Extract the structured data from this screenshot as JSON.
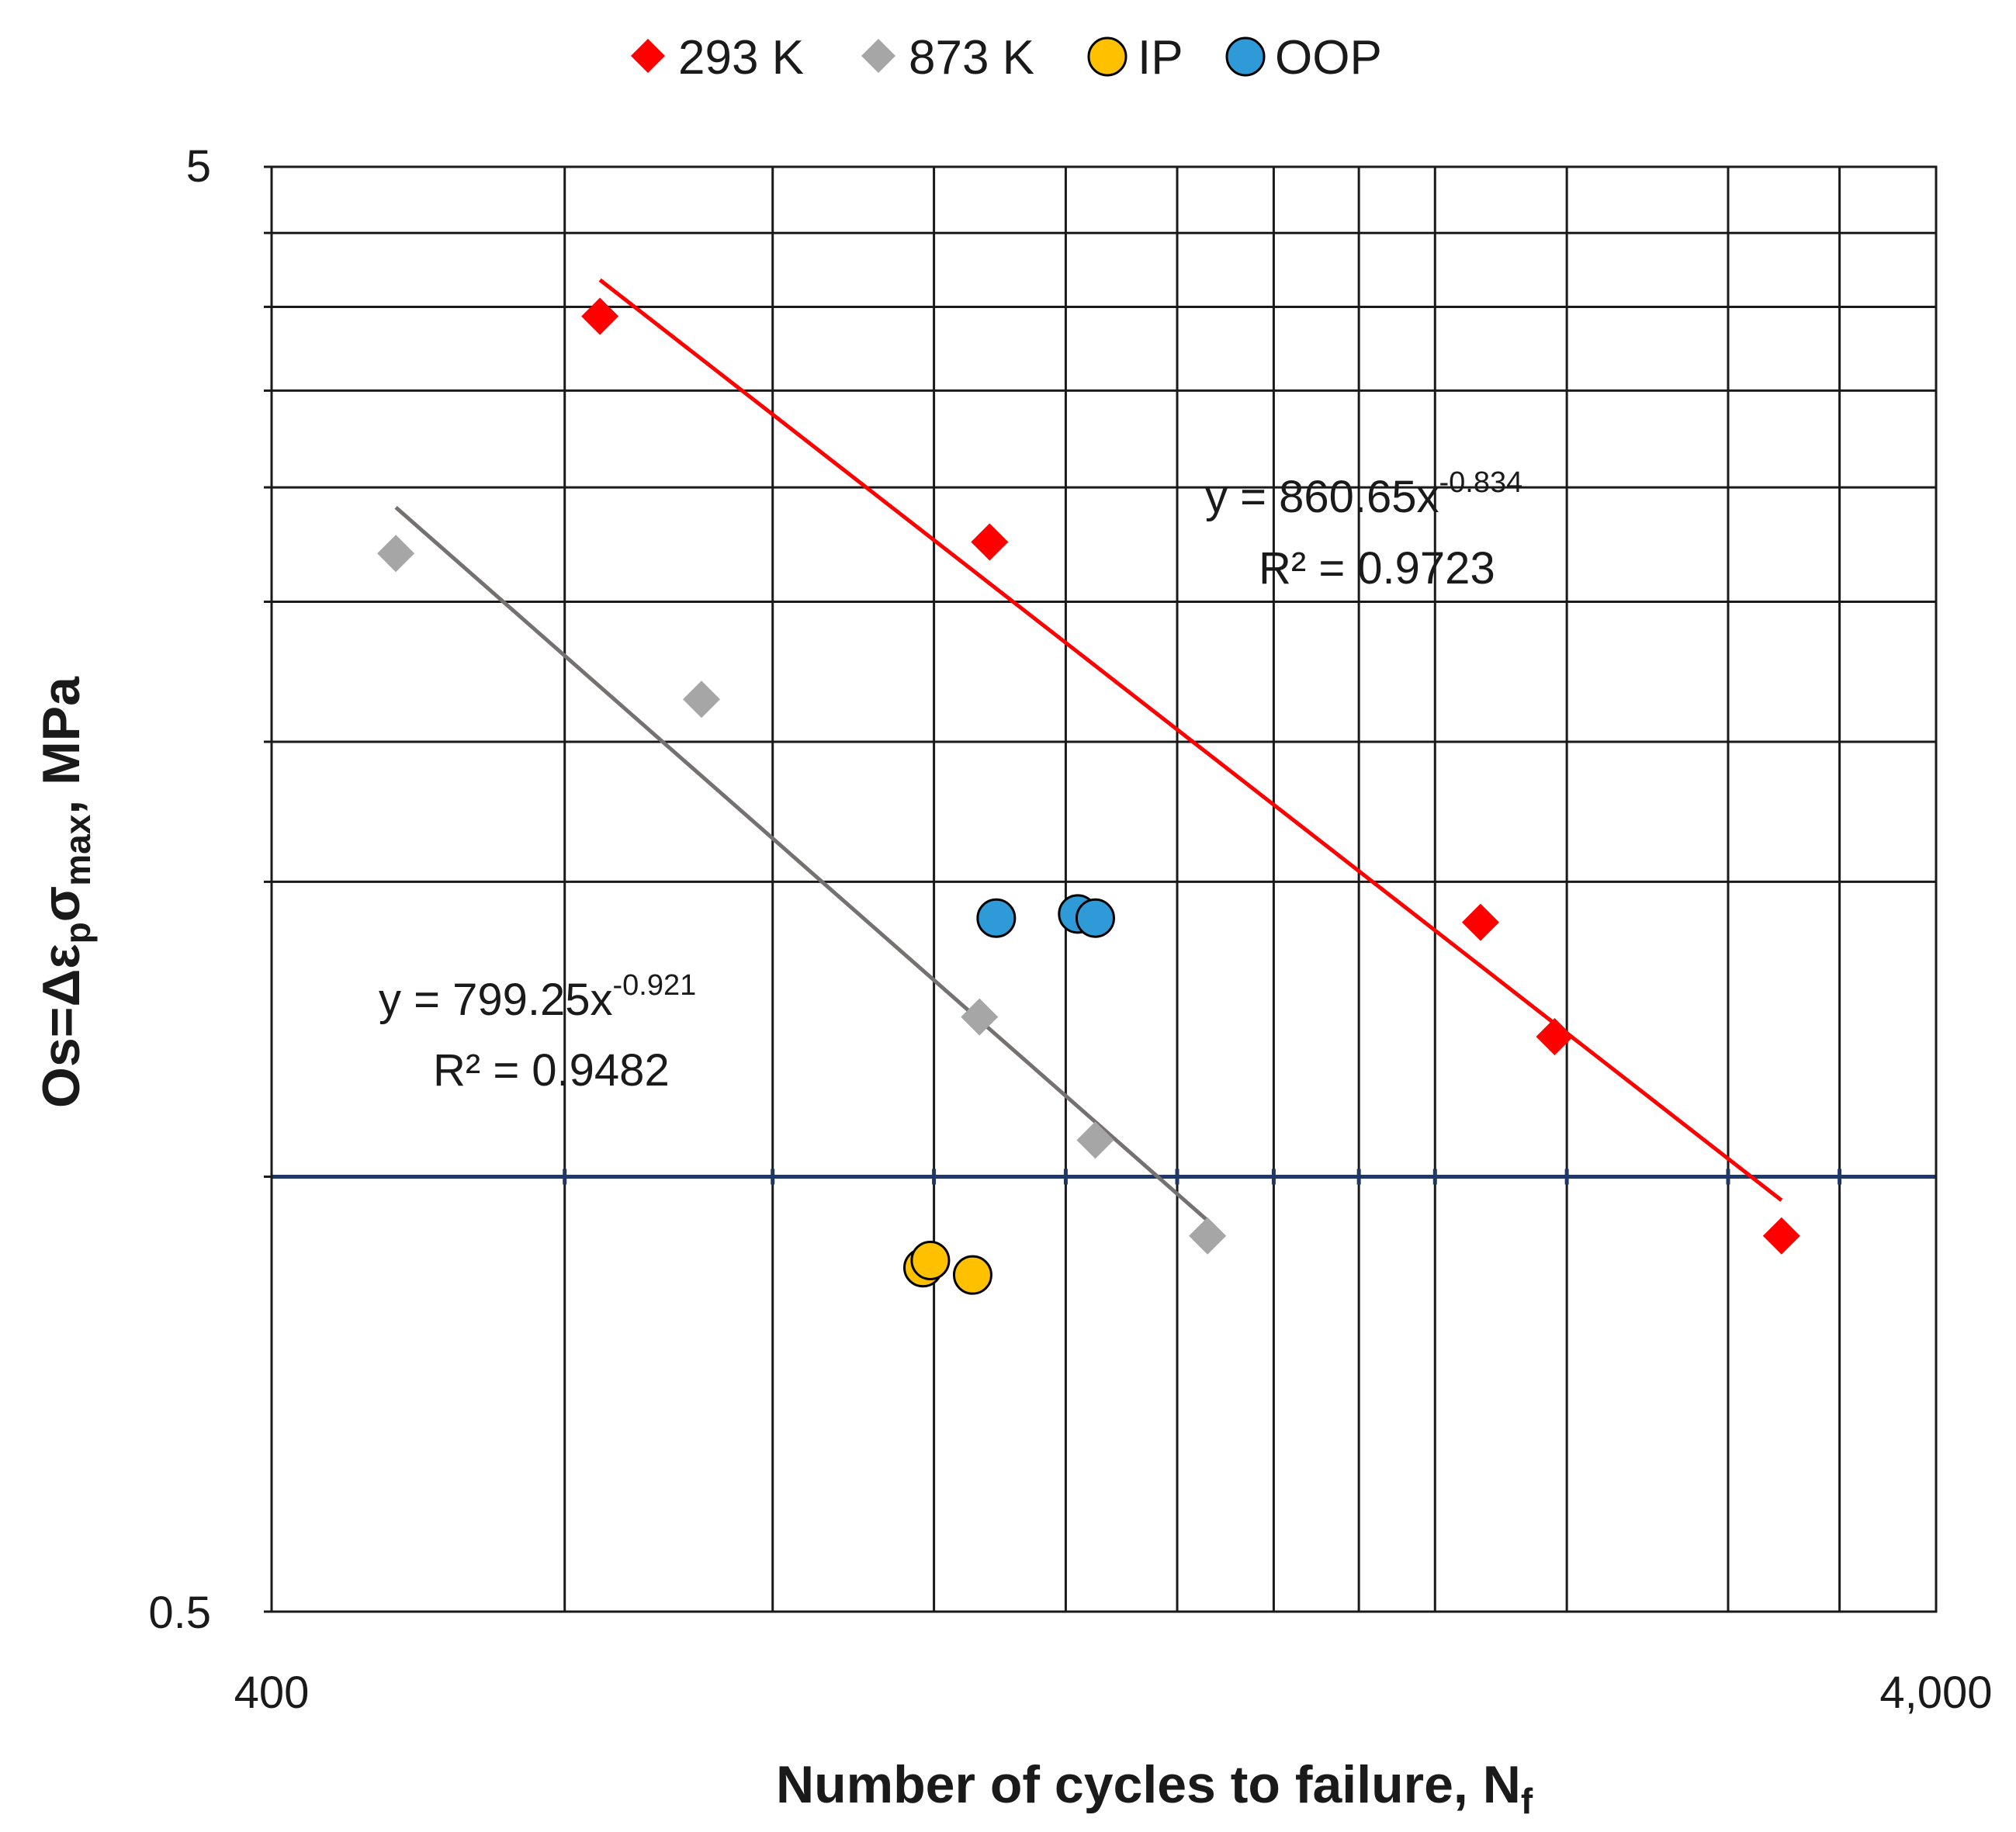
{
  "chart_data": {
    "type": "scatter",
    "xscale": "log",
    "yscale": "log",
    "xlim": [
      400,
      4000
    ],
    "ylim": [
      0.5,
      5
    ],
    "x_tick_labels": [
      "400",
      "4,000"
    ],
    "y_tick_labels": [
      "0.5",
      "5"
    ],
    "x_gridlines": [
      400,
      600,
      800,
      1000,
      1200,
      1400,
      1600,
      1800,
      2000,
      2400,
      3000,
      3500
    ],
    "y_gridlines": [
      0.5,
      1.0,
      1.6,
      2.0,
      2.5,
      3.0,
      3.5,
      4.0,
      4.5,
      5.0
    ],
    "reference_line": {
      "y": 1.0,
      "color": "#1f3864"
    },
    "xlabel": {
      "main": "Number of cycles to failure, N",
      "sub": "f"
    },
    "ylabel": {
      "part1": "Os=Δε",
      "sub1": "p",
      "part2": "σ",
      "sub2": "max",
      "part3": ", MPa"
    },
    "legend": [
      {
        "label": "293 K",
        "color": "#ff0000",
        "marker": "diamond"
      },
      {
        "label": "873 K",
        "color": "#a6a6a6",
        "marker": "diamond"
      },
      {
        "label": "IP",
        "color": "#ffc000",
        "marker": "circle"
      },
      {
        "label": "OOP",
        "color": "#2e9ad8",
        "marker": "circle"
      }
    ],
    "series": [
      {
        "name": "293 K",
        "color": "#ff0000",
        "marker": "diamond",
        "points": [
          {
            "x": 630,
            "y": 3.94
          },
          {
            "x": 1080,
            "y": 2.75
          },
          {
            "x": 2130,
            "y": 1.5
          },
          {
            "x": 2360,
            "y": 1.25
          },
          {
            "x": 3230,
            "y": 0.91
          }
        ],
        "trend": {
          "x": [
            630,
            3230
          ],
          "equation_main": "y = 860.65x",
          "equation_exp": "-0.834",
          "r2": "R² = 0.9723",
          "color": "#ff0000"
        }
      },
      {
        "name": "873 K",
        "color": "#a6a6a6",
        "marker": "diamond",
        "points": [
          {
            "x": 475,
            "y": 2.7
          },
          {
            "x": 725,
            "y": 2.14
          },
          {
            "x": 1065,
            "y": 1.29
          },
          {
            "x": 1250,
            "y": 1.06
          },
          {
            "x": 1460,
            "y": 0.91
          }
        ],
        "trend": {
          "x": [
            475,
            1460
          ],
          "equation_main": "y = 799.25x",
          "equation_exp": "-0.921",
          "r2": "R² = 0.9482",
          "color": "#767171"
        }
      },
      {
        "name": "IP",
        "color": "#ffc000",
        "marker": "circle",
        "points": [
          {
            "x": 985,
            "y": 0.865
          },
          {
            "x": 995,
            "y": 0.875
          },
          {
            "x": 1055,
            "y": 0.855
          }
        ]
      },
      {
        "name": "OOP",
        "color": "#2e9ad8",
        "marker": "circle",
        "points": [
          {
            "x": 1090,
            "y": 1.51
          },
          {
            "x": 1220,
            "y": 1.52
          },
          {
            "x": 1250,
            "y": 1.51
          }
        ]
      }
    ]
  }
}
